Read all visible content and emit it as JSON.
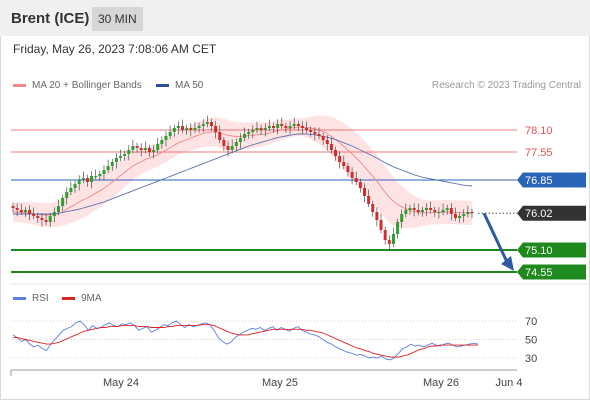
{
  "header": {
    "instrument": "Brent (ICE)",
    "timeframe": "30 MIN"
  },
  "timestamp": "Friday, May 26, 2023 7:08:06 AM CET",
  "legend": {
    "ma20_label": "MA 20 + Bollinger Bands",
    "ma50_label": "MA 50",
    "copyright": "Research © 2023 Trading Central"
  },
  "rsi_legend": {
    "rsi_label": "RSI",
    "ma9_label": "9MA"
  },
  "colors": {
    "resistance": "#e05555",
    "pivot": "#2a64b8",
    "support": "#1e8a1e",
    "last_price": "#333333",
    "bollinger_fill": "#fde0e0",
    "ma20": "#f08a8a",
    "ma50": "#5a74b4",
    "candle_up": "#2e9e2e",
    "candle_down": "#d42b2b",
    "arrow": "#2d5aa0",
    "rsi": "#5b7fe0",
    "rsi_ma": "#dd2222"
  },
  "chart_data": [
    {
      "type": "candlestick",
      "title": "Brent (ICE)",
      "timeframe": "30 MIN",
      "x_axis": [
        "May 24",
        "May 25",
        "May 26",
        "Jun 4"
      ],
      "ylim": [
        74.3,
        78.5
      ],
      "price_levels": [
        {
          "label": "78.10",
          "value": 78.1,
          "kind": "resistance"
        },
        {
          "label": "77.55",
          "value": 77.55,
          "kind": "resistance"
        },
        {
          "label": "76.85",
          "value": 76.85,
          "kind": "pivot"
        },
        {
          "label": "76.02",
          "value": 76.02,
          "kind": "last"
        },
        {
          "label": "75.10",
          "value": 75.1,
          "kind": "support"
        },
        {
          "label": "74.55",
          "value": 74.55,
          "kind": "support"
        }
      ],
      "series": [
        {
          "name": "Price",
          "close": [
            76.15,
            76.1,
            76.05,
            76.1,
            76.0,
            75.95,
            75.9,
            75.85,
            75.8,
            75.95,
            76.05,
            76.2,
            76.4,
            76.55,
            76.65,
            76.75,
            76.85,
            76.9,
            76.8,
            76.95,
            76.95,
            77.0,
            77.1,
            77.2,
            77.3,
            77.4,
            77.45,
            77.5,
            77.6,
            77.7,
            77.65,
            77.6,
            77.65,
            77.55,
            77.6,
            77.75,
            77.85,
            77.95,
            78.05,
            78.15,
            78.2,
            78.1,
            78.15,
            78.1,
            78.15,
            78.2,
            78.25,
            78.3,
            78.2,
            78.05,
            77.85,
            77.7,
            77.6,
            77.7,
            77.8,
            77.9,
            78.0,
            78.05,
            78.1,
            78.15,
            78.1,
            78.15,
            78.2,
            78.15,
            78.25,
            78.2,
            78.15,
            78.2,
            78.25,
            78.2,
            78.15,
            78.1,
            78.05,
            78.0,
            77.95,
            77.85,
            77.75,
            77.6,
            77.45,
            77.3,
            77.2,
            77.05,
            76.9,
            76.8,
            76.65,
            76.45,
            76.25,
            76.05,
            75.85,
            75.6,
            75.35,
            75.25,
            75.5,
            75.8,
            76.0,
            76.1,
            76.15,
            76.1,
            76.05,
            76.1,
            76.15,
            76.1,
            76.05,
            76.05,
            76.1,
            76.15,
            76.0,
            75.9,
            75.95,
            76.0,
            76.05,
            76.02
          ]
        },
        {
          "name": "MA 20",
          "values": [
            76.05,
            76.05,
            76.04,
            76.04,
            76.02,
            76.01,
            75.99,
            75.98,
            75.97,
            75.98,
            75.99,
            76.01,
            76.06,
            76.12,
            76.18,
            76.24,
            76.3,
            76.36,
            76.4,
            76.46,
            76.52,
            76.58,
            76.64,
            76.72,
            76.8,
            76.88,
            76.96,
            77.04,
            77.12,
            77.2,
            77.26,
            77.31,
            77.36,
            77.4,
            77.44,
            77.48,
            77.54,
            77.6,
            77.66,
            77.72,
            77.78,
            77.82,
            77.86,
            77.9,
            77.94,
            77.98,
            78.01,
            78.04,
            78.05,
            78.05,
            78.03,
            78.0,
            77.97,
            77.95,
            77.94,
            77.94,
            77.95,
            77.96,
            77.97,
            77.98,
            77.99,
            78.0,
            78.02,
            78.05,
            78.08,
            78.1,
            78.12,
            78.14,
            78.16,
            78.17,
            78.17,
            78.16,
            78.15,
            78.13,
            78.1,
            78.06,
            78.01,
            77.94,
            77.86,
            77.78,
            77.69,
            77.6,
            77.5,
            77.4,
            77.3,
            77.18,
            77.06,
            76.94,
            76.82,
            76.68,
            76.54,
            76.42,
            76.32,
            76.24,
            76.18,
            76.13,
            76.09,
            76.06,
            76.04,
            76.03,
            76.03,
            76.03,
            76.04,
            76.04,
            76.05,
            76.05,
            76.05,
            76.04,
            76.04,
            76.03,
            76.03,
            76.02
          ]
        },
        {
          "name": "MA 50",
          "values": [
            76.0,
            76.0,
            76.0,
            76.0,
            76.0,
            76.0,
            76.0,
            76.0,
            76.0,
            76.0,
            76.0,
            76.02,
            76.04,
            76.06,
            76.08,
            76.1,
            76.12,
            76.15,
            76.18,
            76.21,
            76.24,
            76.27,
            76.3,
            76.34,
            76.38,
            76.42,
            76.46,
            76.5,
            76.54,
            76.58,
            76.62,
            76.66,
            76.7,
            76.74,
            76.78,
            76.82,
            76.86,
            76.9,
            76.94,
            76.98,
            77.02,
            77.06,
            77.1,
            77.14,
            77.18,
            77.22,
            77.26,
            77.3,
            77.34,
            77.38,
            77.42,
            77.46,
            77.5,
            77.54,
            77.58,
            77.62,
            77.66,
            77.7,
            77.73,
            77.76,
            77.79,
            77.82,
            77.85,
            77.88,
            77.91,
            77.93,
            77.95,
            77.97,
            77.99,
            78.0,
            78.0,
            78.0,
            77.99,
            77.98,
            77.96,
            77.94,
            77.92,
            77.89,
            77.86,
            77.82,
            77.78,
            77.74,
            77.7,
            77.65,
            77.6,
            77.55,
            77.5,
            77.45,
            77.4,
            77.34,
            77.28,
            77.23,
            77.18,
            77.14,
            77.1,
            77.06,
            77.02,
            76.98,
            76.95,
            76.92,
            76.9,
            76.88,
            76.86,
            76.84,
            76.82,
            76.8,
            76.78,
            76.76,
            76.74,
            76.72,
            76.71,
            76.7
          ]
        }
      ],
      "bollinger_halfwidth": [
        0.25,
        0.25,
        0.25,
        0.26,
        0.27,
        0.28,
        0.29,
        0.3,
        0.3,
        0.3,
        0.31,
        0.33,
        0.35,
        0.38,
        0.4,
        0.42,
        0.44,
        0.45,
        0.44,
        0.43,
        0.42,
        0.42,
        0.41,
        0.4,
        0.4,
        0.39,
        0.38,
        0.37,
        0.36,
        0.35,
        0.34,
        0.33,
        0.32,
        0.31,
        0.3,
        0.3,
        0.3,
        0.3,
        0.3,
        0.3,
        0.3,
        0.3,
        0.3,
        0.31,
        0.32,
        0.33,
        0.34,
        0.35,
        0.36,
        0.37,
        0.38,
        0.38,
        0.38,
        0.37,
        0.36,
        0.35,
        0.34,
        0.33,
        0.32,
        0.31,
        0.3,
        0.29,
        0.28,
        0.27,
        0.26,
        0.25,
        0.24,
        0.23,
        0.22,
        0.22,
        0.23,
        0.25,
        0.28,
        0.32,
        0.36,
        0.4,
        0.44,
        0.48,
        0.52,
        0.55,
        0.58,
        0.6,
        0.62,
        0.63,
        0.64,
        0.65,
        0.66,
        0.66,
        0.66,
        0.66,
        0.65,
        0.63,
        0.6,
        0.56,
        0.52,
        0.48,
        0.44,
        0.4,
        0.36,
        0.33,
        0.31,
        0.3,
        0.3,
        0.3,
        0.3,
        0.3,
        0.3,
        0.3,
        0.3,
        0.3,
        0.3,
        0.3
      ],
      "forecast_arrow": {
        "from": 76.02,
        "to": 74.55
      }
    },
    {
      "type": "line",
      "title": "RSI",
      "ylim": [
        20,
        80
      ],
      "y_ticks": [
        "70",
        "50",
        "30"
      ],
      "x_axis": [
        "May 24",
        "May 25",
        "May 26",
        "Jun 4"
      ],
      "series": [
        {
          "name": "RSI",
          "values": [
            55,
            52,
            48,
            50,
            45,
            42,
            44,
            40,
            38,
            45,
            50,
            55,
            60,
            62,
            64,
            68,
            70,
            66,
            60,
            65,
            62,
            63,
            66,
            68,
            65,
            64,
            67,
            66,
            68,
            65,
            60,
            62,
            64,
            58,
            60,
            63,
            66,
            65,
            68,
            70,
            66,
            63,
            66,
            64,
            65,
            67,
            68,
            66,
            60,
            52,
            48,
            45,
            47,
            52,
            55,
            58,
            60,
            62,
            61,
            63,
            60,
            62,
            64,
            60,
            63,
            61,
            59,
            62,
            64,
            60,
            58,
            56,
            55,
            53,
            50,
            47,
            45,
            42,
            40,
            38,
            36,
            35,
            33,
            34,
            32,
            30,
            31,
            30,
            32,
            29,
            28,
            30,
            35,
            40,
            42,
            45,
            43,
            44,
            42,
            44,
            46,
            44,
            43,
            45,
            46,
            44,
            42,
            43,
            44,
            45,
            46,
            45
          ]
        },
        {
          "name": "9MA",
          "values": [
            52,
            52,
            51,
            50,
            49,
            48,
            47,
            46,
            45,
            45,
            46,
            47,
            49,
            51,
            53,
            55,
            57,
            59,
            60,
            61,
            62,
            63,
            63,
            64,
            64,
            64,
            65,
            65,
            65,
            65,
            64,
            64,
            64,
            63,
            63,
            63,
            63,
            64,
            64,
            65,
            65,
            65,
            65,
            65,
            65,
            66,
            66,
            66,
            65,
            63,
            61,
            59,
            57,
            56,
            55,
            55,
            55,
            56,
            57,
            58,
            59,
            60,
            61,
            61,
            61,
            61,
            61,
            61,
            61,
            61,
            60,
            60,
            59,
            58,
            57,
            55,
            53,
            51,
            49,
            47,
            45,
            43,
            41,
            40,
            38,
            37,
            35,
            34,
            33,
            32,
            31,
            31,
            31,
            32,
            33,
            35,
            37,
            39,
            40,
            42,
            43,
            43,
            44,
            44,
            44,
            44,
            44,
            44,
            44,
            44,
            44,
            44
          ]
        }
      ]
    }
  ]
}
